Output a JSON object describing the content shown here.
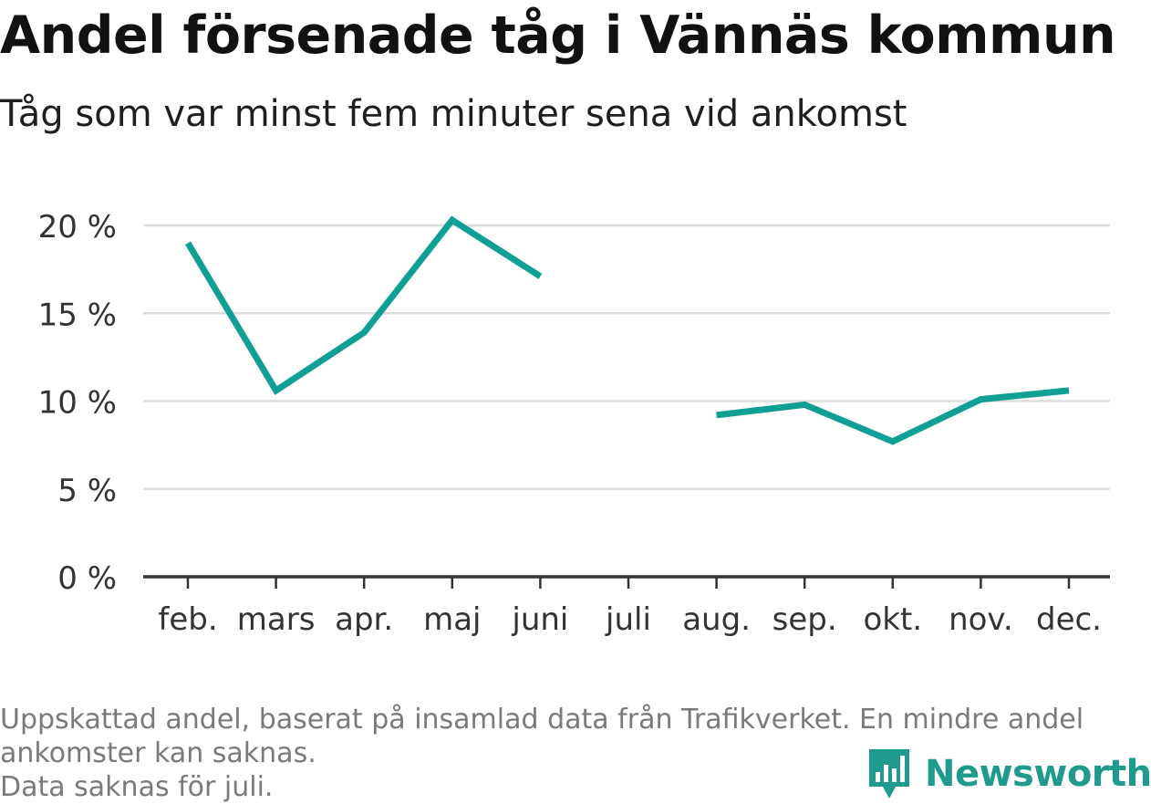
{
  "title": "Andel försenade tåg i Vännäs kommun",
  "subtitle": "Tåg som var minst fem minuter sena vid ankomst",
  "footnote": {
    "line1": "Uppskattad andel, baserat på insamlad data från Trafikverket. En mindre andel",
    "line2": "ankomster kan saknas.",
    "line3": "Data saknas för juli."
  },
  "logo": {
    "text": "Newsworthy",
    "icon": "newsworthy-chart-bubble-icon"
  },
  "colors": {
    "line": "#0f9f95",
    "grid": "#dddddd",
    "axis": "#333333",
    "logo": "#1f9a8c"
  },
  "chart_data": {
    "type": "line",
    "categories": [
      "feb.",
      "mars",
      "apr.",
      "maj",
      "juni",
      "juli",
      "aug.",
      "sep.",
      "okt.",
      "nov.",
      "dec."
    ],
    "series": [
      {
        "values": [
          19.0,
          10.6,
          13.9,
          20.3,
          17.1,
          null,
          9.2,
          9.8,
          7.7,
          10.1,
          10.6
        ]
      }
    ],
    "ylim": [
      0,
      20
    ],
    "yticks": [
      0,
      5,
      10,
      15,
      20
    ],
    "ytick_labels": [
      "0 %",
      "5 %",
      "10 %",
      "15 %",
      "20 %"
    ],
    "xlabel": "",
    "ylabel": "",
    "grid": true
  }
}
